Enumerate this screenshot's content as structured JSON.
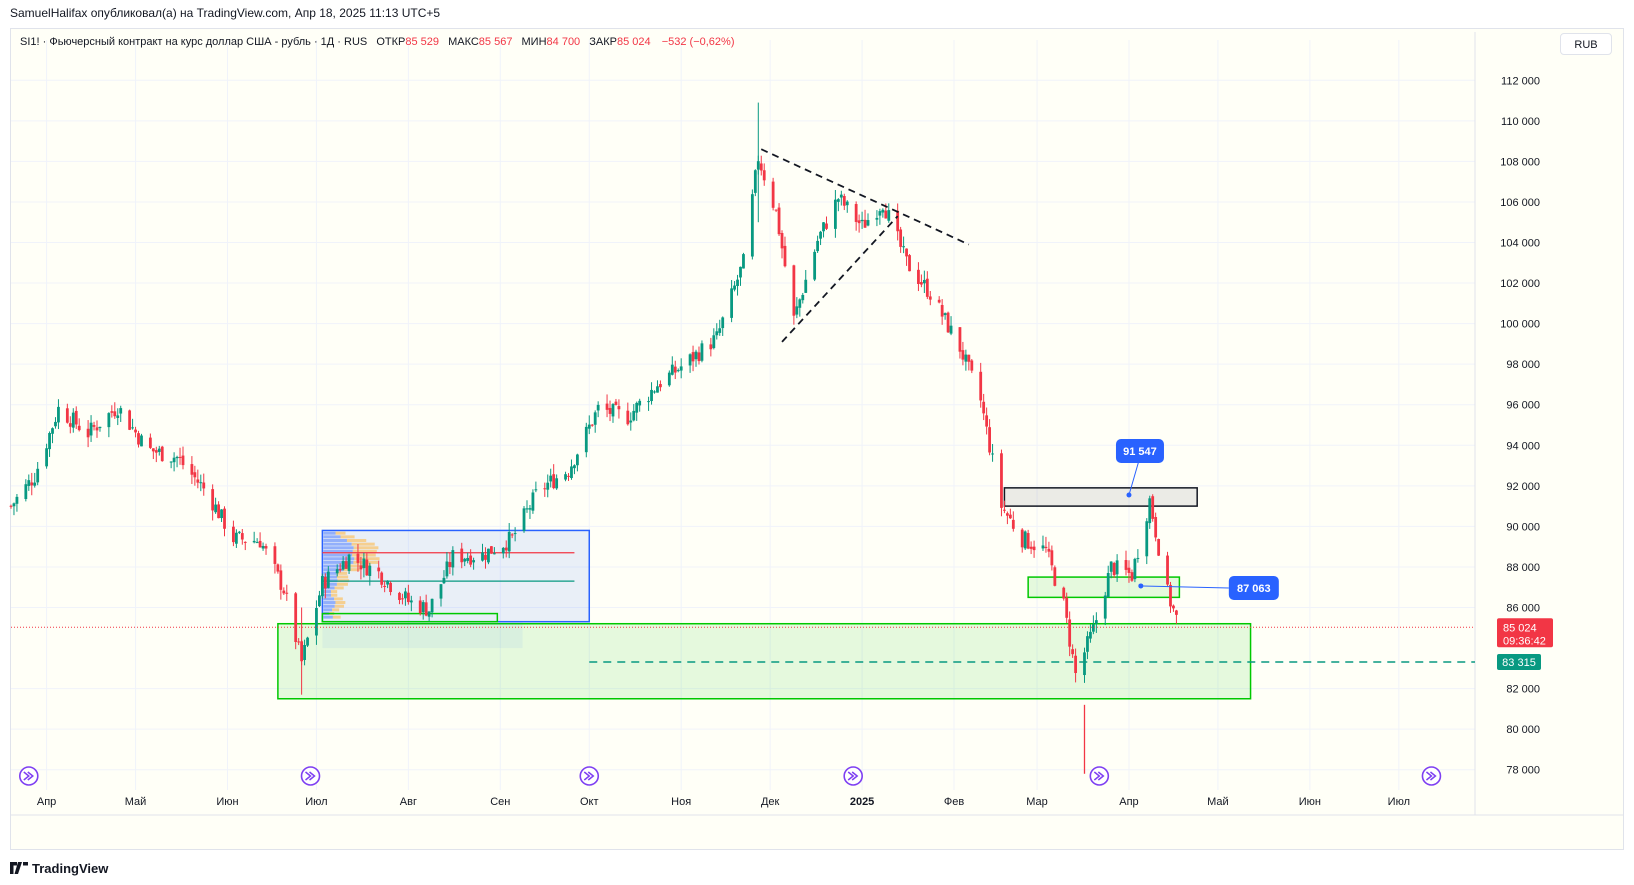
{
  "header": {
    "publisher_line": "SamuelHalifax опубликовал(а) на TradingView.com, Апр 18, 2025 11:13 UTC+5"
  },
  "legend": {
    "symbol_title": "SI1! · Фьючерсный контракт на курс доллар США - рубль · 1Д · RUS",
    "open_label": "ОТКР",
    "open_value": "85 529",
    "high_label": "МАКС",
    "high_value": "85 567",
    "low_label": "МИН",
    "low_value": "84 700",
    "close_label": "ЗАКР",
    "close_value": "85 024",
    "change": "−532 (−0,62%)"
  },
  "currency_button": "RUB",
  "footer": {
    "brand": "TradingView"
  },
  "colors": {
    "up": "#089981",
    "down": "#f23645",
    "grid": "#f0f3fa",
    "zone_green": "#00c800",
    "zone_fill": "rgba(0,200,0,0.10)",
    "blue_box": "#2962ff",
    "label_blue": "#2962ff",
    "price_red": "#f23645",
    "teal_line": "#089981",
    "event_icon": "#7e3ff2"
  },
  "chart_data": {
    "type": "candlestick",
    "title": "SI1! · Фьючерсный контракт на курс доллар США - рубль · 1Д · RUS",
    "ylim": [
      77000,
      113000
    ],
    "y_ticks": [
      {
        "value": 112000,
        "label": "112 000"
      },
      {
        "value": 110000,
        "label": "110 000"
      },
      {
        "value": 108000,
        "label": "108 000"
      },
      {
        "value": 106000,
        "label": "106 000"
      },
      {
        "value": 104000,
        "label": "104 000"
      },
      {
        "value": 102000,
        "label": "102 000"
      },
      {
        "value": 100000,
        "label": "100 000"
      },
      {
        "value": 98000,
        "label": "98 000"
      },
      {
        "value": 96000,
        "label": "96 000"
      },
      {
        "value": 94000,
        "label": "94 000"
      },
      {
        "value": 92000,
        "label": "92 000"
      },
      {
        "value": 90000,
        "label": "90 000"
      },
      {
        "value": 88000,
        "label": "88 000"
      },
      {
        "value": 86000,
        "label": "86 000"
      },
      {
        "value": 82000,
        "label": "82 000"
      },
      {
        "value": 80000,
        "label": "80 000"
      },
      {
        "value": 78000,
        "label": "78 000"
      }
    ],
    "x_range": [
      "2024-03-20",
      "2025-07-25"
    ],
    "x_ticks": [
      {
        "date": "2024-04-01",
        "label": "Апр",
        "bold": false
      },
      {
        "date": "2024-05-01",
        "label": "Май",
        "bold": false
      },
      {
        "date": "2024-06-01",
        "label": "Июн",
        "bold": false
      },
      {
        "date": "2024-07-01",
        "label": "Июл",
        "bold": false
      },
      {
        "date": "2024-08-01",
        "label": "Авг",
        "bold": false
      },
      {
        "date": "2024-09-01",
        "label": "Сен",
        "bold": false
      },
      {
        "date": "2024-10-01",
        "label": "Окт",
        "bold": false
      },
      {
        "date": "2024-11-01",
        "label": "Ноя",
        "bold": false
      },
      {
        "date": "2024-12-01",
        "label": "Дек",
        "bold": false
      },
      {
        "date": "2025-01-01",
        "label": "2025",
        "bold": true
      },
      {
        "date": "2025-02-01",
        "label": "Фев",
        "bold": false
      },
      {
        "date": "2025-03-01",
        "label": "Мар",
        "bold": false
      },
      {
        "date": "2025-04-01",
        "label": "Апр",
        "bold": false
      },
      {
        "date": "2025-05-01",
        "label": "Май",
        "bold": false
      },
      {
        "date": "2025-06-01",
        "label": "Июн",
        "bold": false
      },
      {
        "date": "2025-07-01",
        "label": "Июл",
        "bold": false
      }
    ],
    "close_path": [
      {
        "date": "2024-03-20",
        "close": 91000
      },
      {
        "date": "2024-03-28",
        "close": 92500
      },
      {
        "date": "2024-04-05",
        "close": 95800
      },
      {
        "date": "2024-04-15",
        "close": 94600
      },
      {
        "date": "2024-04-25",
        "close": 95900
      },
      {
        "date": "2024-05-05",
        "close": 93800
      },
      {
        "date": "2024-05-15",
        "close": 93400
      },
      {
        "date": "2024-05-25",
        "close": 91700
      },
      {
        "date": "2024-06-03",
        "close": 89400
      },
      {
        "date": "2024-06-12",
        "close": 89300
      },
      {
        "date": "2024-06-20",
        "close": 86900
      },
      {
        "date": "2024-06-26",
        "close": 83300
      },
      {
        "date": "2024-07-03",
        "close": 87200
      },
      {
        "date": "2024-07-12",
        "close": 88500
      },
      {
        "date": "2024-07-22",
        "close": 87700
      },
      {
        "date": "2024-08-01",
        "close": 86300
      },
      {
        "date": "2024-08-08",
        "close": 85900
      },
      {
        "date": "2024-08-16",
        "close": 88500
      },
      {
        "date": "2024-08-26",
        "close": 88600
      },
      {
        "date": "2024-09-05",
        "close": 89400
      },
      {
        "date": "2024-09-14",
        "close": 91800
      },
      {
        "date": "2024-09-24",
        "close": 92800
      },
      {
        "date": "2024-10-04",
        "close": 95800
      },
      {
        "date": "2024-10-14",
        "close": 95400
      },
      {
        "date": "2024-10-24",
        "close": 97000
      },
      {
        "date": "2024-11-03",
        "close": 98100
      },
      {
        "date": "2024-11-13",
        "close": 99300
      },
      {
        "date": "2024-11-22",
        "close": 103000
      },
      {
        "date": "2024-11-27",
        "close": 108200
      },
      {
        "date": "2024-12-03",
        "close": 105500
      },
      {
        "date": "2024-12-09",
        "close": 100200
      },
      {
        "date": "2024-12-17",
        "close": 104100
      },
      {
        "date": "2024-12-24",
        "close": 106200
      },
      {
        "date": "2025-01-01",
        "close": 104800
      },
      {
        "date": "2025-01-08",
        "close": 106000
      },
      {
        "date": "2025-01-16",
        "close": 103000
      },
      {
        "date": "2025-01-24",
        "close": 101500
      },
      {
        "date": "2025-02-03",
        "close": 98800
      },
      {
        "date": "2025-02-10",
        "close": 96200
      },
      {
        "date": "2025-02-17",
        "close": 91000
      },
      {
        "date": "2025-02-24",
        "close": 89400
      },
      {
        "date": "2025-03-04",
        "close": 88800
      },
      {
        "date": "2025-03-10",
        "close": 86100
      },
      {
        "date": "2025-03-14",
        "close": 82700
      },
      {
        "date": "2025-03-20",
        "close": 84900
      },
      {
        "date": "2025-03-26",
        "close": 88000
      },
      {
        "date": "2025-04-02",
        "close": 87600
      },
      {
        "date": "2025-04-08",
        "close": 91300
      },
      {
        "date": "2025-04-14",
        "close": 86700
      },
      {
        "date": "2025-04-18",
        "close": 85024
      }
    ],
    "annotations": {
      "last_price": {
        "value": 85024,
        "label": "85 024",
        "countdown": "09:36:42"
      },
      "level_line": {
        "value": 83315,
        "label": "83 315",
        "from_date": "2024-10-01"
      },
      "callout_top": {
        "label": "91 547",
        "anchor_date": "2025-04-01",
        "anchor_value": 91547
      },
      "callout_mid": {
        "label": "87 063",
        "anchor_date": "2025-04-05",
        "anchor_value": 87063
      },
      "zone_big": {
        "from": "2024-06-18",
        "to": "2025-05-12",
        "low": 81500,
        "high": 85200
      },
      "zone_small_left": {
        "from": "2024-07-03",
        "to": "2024-08-31",
        "low": 85300,
        "high": 85700
      },
      "zone_mid": {
        "from": "2025-02-26",
        "to": "2025-04-18",
        "low": 86500,
        "high": 87500
      },
      "zone_black": {
        "from": "2025-02-18",
        "to": "2025-04-24",
        "low": 91000,
        "high": 91900
      },
      "volume_profile_box": {
        "from": "2024-07-03",
        "to": "2024-10-01",
        "low": 85300,
        "high": 89800
      },
      "profile_red_line": 88700,
      "profile_teal_line": 87300,
      "triangle_upper": [
        {
          "date": "2024-11-28",
          "value": 108600
        },
        {
          "date": "2025-02-06",
          "value": 103900
        }
      ],
      "triangle_lower": [
        {
          "date": "2024-12-05",
          "value": 99100
        },
        {
          "date": "2025-01-13",
          "value": 105300
        }
      ],
      "event_markers": [
        "2024-03-26",
        "2024-06-29",
        "2024-10-01",
        "2024-12-29",
        "2025-03-22",
        "2025-07-12"
      ]
    }
  }
}
